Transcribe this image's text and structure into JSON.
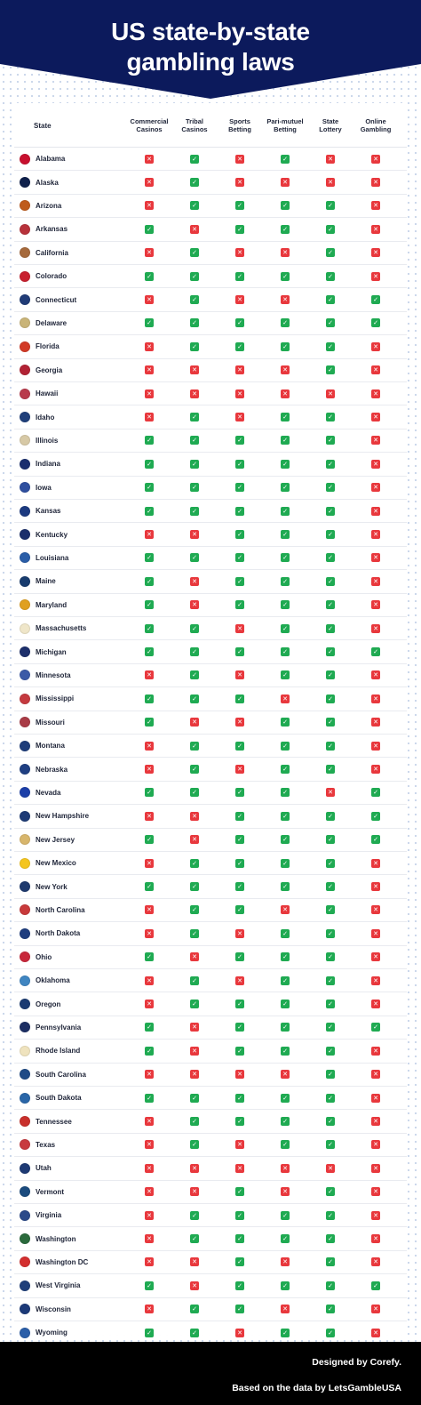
{
  "title_line1": "US state-by-state",
  "title_line2": "gambling laws",
  "colors": {
    "banner": "#0c1a5c",
    "yes": "#1faa52",
    "no": "#e8383d"
  },
  "table": {
    "headers": {
      "state": "State",
      "columns": [
        "Commercial\nCasinos",
        "Tribal\nCasinos",
        "Sports\nBetting",
        "Pari-mutuel\nBetting",
        "State\nLottery",
        "Online\nGambling"
      ]
    },
    "rows": [
      {
        "state": "Alabama",
        "seal": "#c8102e",
        "values": [
          false,
          true,
          false,
          true,
          false,
          false
        ]
      },
      {
        "state": "Alaska",
        "seal": "#0f204b",
        "values": [
          false,
          true,
          false,
          false,
          false,
          false
        ]
      },
      {
        "state": "Arizona",
        "seal": "#bf5b1b",
        "values": [
          false,
          true,
          true,
          true,
          true,
          false
        ]
      },
      {
        "state": "Arkansas",
        "seal": "#b8323b",
        "values": [
          true,
          false,
          true,
          true,
          true,
          false
        ]
      },
      {
        "state": "California",
        "seal": "#a66a3c",
        "values": [
          false,
          true,
          false,
          false,
          true,
          false
        ]
      },
      {
        "state": "Colorado",
        "seal": "#c8202f",
        "values": [
          true,
          true,
          true,
          true,
          true,
          false
        ]
      },
      {
        "state": "Connecticut",
        "seal": "#213c77",
        "values": [
          false,
          true,
          false,
          false,
          true,
          true
        ]
      },
      {
        "state": "Delaware",
        "seal": "#c9b478",
        "values": [
          true,
          true,
          true,
          true,
          true,
          true
        ]
      },
      {
        "state": "Florida",
        "seal": "#d23a26",
        "values": [
          false,
          true,
          true,
          true,
          true,
          false
        ]
      },
      {
        "state": "Georgia",
        "seal": "#b22234",
        "values": [
          false,
          false,
          false,
          false,
          true,
          false
        ]
      },
      {
        "state": "Hawaii",
        "seal": "#b83a4b",
        "values": [
          false,
          false,
          false,
          false,
          false,
          false
        ]
      },
      {
        "state": "Idaho",
        "seal": "#1f3f7a",
        "values": [
          false,
          true,
          false,
          true,
          true,
          false
        ]
      },
      {
        "state": "Illinois",
        "seal": "#d7c9a6",
        "values": [
          true,
          true,
          true,
          true,
          true,
          false
        ]
      },
      {
        "state": "Indiana",
        "seal": "#1a2e6e",
        "values": [
          true,
          true,
          true,
          true,
          true,
          false
        ]
      },
      {
        "state": "Iowa",
        "seal": "#2f4f9f",
        "values": [
          true,
          true,
          true,
          true,
          true,
          false
        ]
      },
      {
        "state": "Kansas",
        "seal": "#1c3a80",
        "values": [
          true,
          true,
          true,
          true,
          true,
          false
        ]
      },
      {
        "state": "Kentucky",
        "seal": "#1b2e6b",
        "values": [
          false,
          false,
          true,
          true,
          true,
          false
        ]
      },
      {
        "state": "Louisiana",
        "seal": "#2b5ea8",
        "values": [
          true,
          true,
          true,
          true,
          true,
          false
        ]
      },
      {
        "state": "Maine",
        "seal": "#183c6e",
        "values": [
          true,
          false,
          true,
          true,
          true,
          false
        ]
      },
      {
        "state": "Maryland",
        "seal": "#e0a020",
        "values": [
          true,
          false,
          true,
          true,
          true,
          false
        ]
      },
      {
        "state": "Massachusetts",
        "seal": "#efe6c9",
        "values": [
          true,
          true,
          false,
          true,
          true,
          false
        ]
      },
      {
        "state": "Michigan",
        "seal": "#1d2f6b",
        "values": [
          true,
          true,
          true,
          true,
          true,
          true
        ]
      },
      {
        "state": "Minnesota",
        "seal": "#3b5aa7",
        "values": [
          false,
          true,
          false,
          true,
          true,
          false
        ]
      },
      {
        "state": "Mississippi",
        "seal": "#c53a3f",
        "values": [
          true,
          true,
          true,
          false,
          true,
          false
        ]
      },
      {
        "state": "Missouri",
        "seal": "#a93b46",
        "values": [
          true,
          false,
          false,
          true,
          true,
          false
        ]
      },
      {
        "state": "Montana",
        "seal": "#1e3d7a",
        "values": [
          false,
          true,
          true,
          true,
          true,
          false
        ]
      },
      {
        "state": "Nebraska",
        "seal": "#1f3f82",
        "values": [
          false,
          true,
          false,
          true,
          true,
          false
        ]
      },
      {
        "state": "Nevada",
        "seal": "#1c3fa8",
        "values": [
          true,
          true,
          true,
          true,
          false,
          true
        ]
      },
      {
        "state": "New Hampshire",
        "seal": "#1e3b76",
        "values": [
          false,
          false,
          true,
          true,
          true,
          true
        ]
      },
      {
        "state": "New Jersey",
        "seal": "#d8b66c",
        "values": [
          true,
          false,
          true,
          true,
          true,
          true
        ]
      },
      {
        "state": "New Mexico",
        "seal": "#f4c51e",
        "values": [
          false,
          true,
          true,
          true,
          true,
          false
        ]
      },
      {
        "state": "New York",
        "seal": "#1f3a6e",
        "values": [
          true,
          true,
          true,
          true,
          true,
          false
        ]
      },
      {
        "state": "North Carolina",
        "seal": "#c83a3b",
        "values": [
          false,
          true,
          true,
          false,
          true,
          false
        ]
      },
      {
        "state": "North Dakota",
        "seal": "#1e3d7e",
        "values": [
          false,
          true,
          false,
          true,
          true,
          false
        ]
      },
      {
        "state": "Ohio",
        "seal": "#c8283b",
        "values": [
          true,
          false,
          true,
          true,
          true,
          false
        ]
      },
      {
        "state": "Oklahoma",
        "seal": "#3f85c1",
        "values": [
          false,
          true,
          false,
          true,
          true,
          false
        ]
      },
      {
        "state": "Oregon",
        "seal": "#1b3b72",
        "values": [
          false,
          true,
          true,
          true,
          true,
          false
        ]
      },
      {
        "state": "Pennsylvania",
        "seal": "#1c2e63",
        "values": [
          true,
          false,
          true,
          true,
          true,
          true
        ]
      },
      {
        "state": "Rhode Island",
        "seal": "#efe3be",
        "values": [
          true,
          false,
          true,
          true,
          true,
          false
        ]
      },
      {
        "state": "South Carolina",
        "seal": "#1f4b87",
        "values": [
          false,
          false,
          false,
          false,
          true,
          false
        ]
      },
      {
        "state": "South Dakota",
        "seal": "#2a66a8",
        "values": [
          true,
          true,
          true,
          true,
          true,
          false
        ]
      },
      {
        "state": "Tennessee",
        "seal": "#c9302c",
        "values": [
          false,
          true,
          true,
          true,
          true,
          false
        ]
      },
      {
        "state": "Texas",
        "seal": "#c83a3f",
        "values": [
          false,
          true,
          false,
          true,
          true,
          false
        ]
      },
      {
        "state": "Utah",
        "seal": "#1e3a74",
        "values": [
          false,
          false,
          false,
          false,
          false,
          false
        ]
      },
      {
        "state": "Vermont",
        "seal": "#1b4b7e",
        "values": [
          false,
          false,
          true,
          false,
          true,
          false
        ]
      },
      {
        "state": "Virginia",
        "seal": "#2b4a8a",
        "values": [
          false,
          true,
          true,
          true,
          true,
          false
        ]
      },
      {
        "state": "Washington",
        "seal": "#2b6a3c",
        "values": [
          false,
          true,
          true,
          true,
          true,
          false
        ]
      },
      {
        "state": "Washington DC",
        "seal": "#d32f2f",
        "values": [
          false,
          false,
          true,
          false,
          true,
          false
        ]
      },
      {
        "state": "West Virginia",
        "seal": "#1f3f7a",
        "values": [
          true,
          false,
          true,
          true,
          true,
          true
        ]
      },
      {
        "state": "Wisconsin",
        "seal": "#1c3a78",
        "values": [
          false,
          true,
          true,
          false,
          true,
          false
        ]
      },
      {
        "state": "Wyoming",
        "seal": "#2b5ea8",
        "values": [
          true,
          true,
          false,
          true,
          true,
          false
        ]
      }
    ]
  },
  "footer": {
    "designed_by": "Designed by Corefy.",
    "source": "Based on the data by LetsGambleUSA"
  }
}
